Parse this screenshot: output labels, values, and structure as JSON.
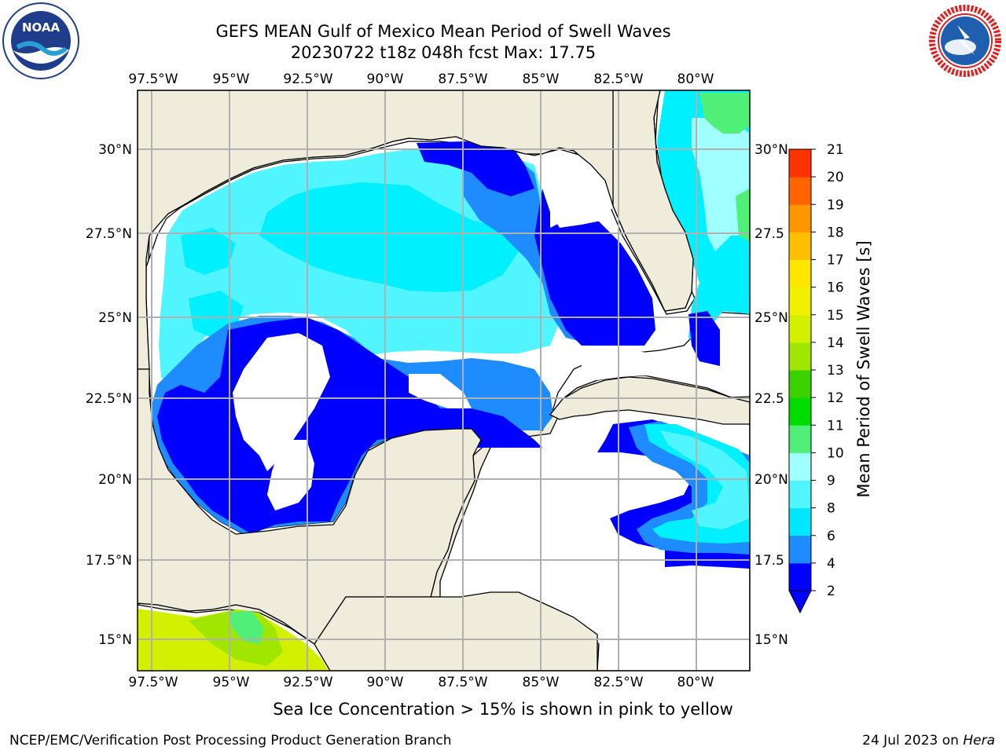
{
  "header": {
    "title_line1": "GEFS MEAN Gulf of Mexico Mean Period of Swell Waves",
    "title_line2": "20230722 t18z 048h fcst   Max: 17.75"
  },
  "logos": {
    "left": {
      "icon": "noaa-logo-icon",
      "text": "NOAA"
    },
    "right": {
      "icon": "nws-logo-icon",
      "text": "NATIONAL WEATHER SERVICE"
    }
  },
  "map": {
    "lon_labels": [
      "97.5°W",
      "95°W",
      "92.5°W",
      "90°W",
      "87.5°W",
      "85°W",
      "82.5°W",
      "80°W"
    ],
    "lat_labels_left": [
      "30°N",
      "27.5°N",
      "25°N",
      "22.5°N",
      "20°N",
      "17.5°N",
      "15°N"
    ],
    "lat_labels_right": [
      "30°N",
      "27.5",
      "25°N",
      "22.5",
      "20°N",
      "17.5",
      "15°N"
    ],
    "colors": {
      "land": "#efecdc",
      "ocean_nodata": "#ffffff",
      "grid": "#b0b0b0",
      "coast": "#000000"
    }
  },
  "colorbar": {
    "title": "Mean Period of Swell Waves [s]",
    "tick_labels": [
      "2",
      "4",
      "6",
      "8",
      "9",
      "10",
      "11",
      "12",
      "13",
      "14",
      "15",
      "16",
      "17",
      "18",
      "19",
      "20",
      "21"
    ],
    "colors": [
      "#0000ff",
      "#1e8cff",
      "#00e6ff",
      "#50f5ff",
      "#a0ffff",
      "#50f078",
      "#00dc00",
      "#3cd200",
      "#a0e600",
      "#d2f000",
      "#f0f000",
      "#ffe600",
      "#ffbe00",
      "#ff9600",
      "#ff6400",
      "#ff3200",
      "#ff0000"
    ],
    "under_color": "#0000ff"
  },
  "captions": {
    "sea_ice": "Sea Ice Concentration > 15% is shown in pink to yellow",
    "footer_left": "NCEP/EMC/Verification Post Processing Product Generation Branch",
    "footer_right_prefix": "24 Jul 2023 on",
    "footer_right_host": "Hera"
  }
}
